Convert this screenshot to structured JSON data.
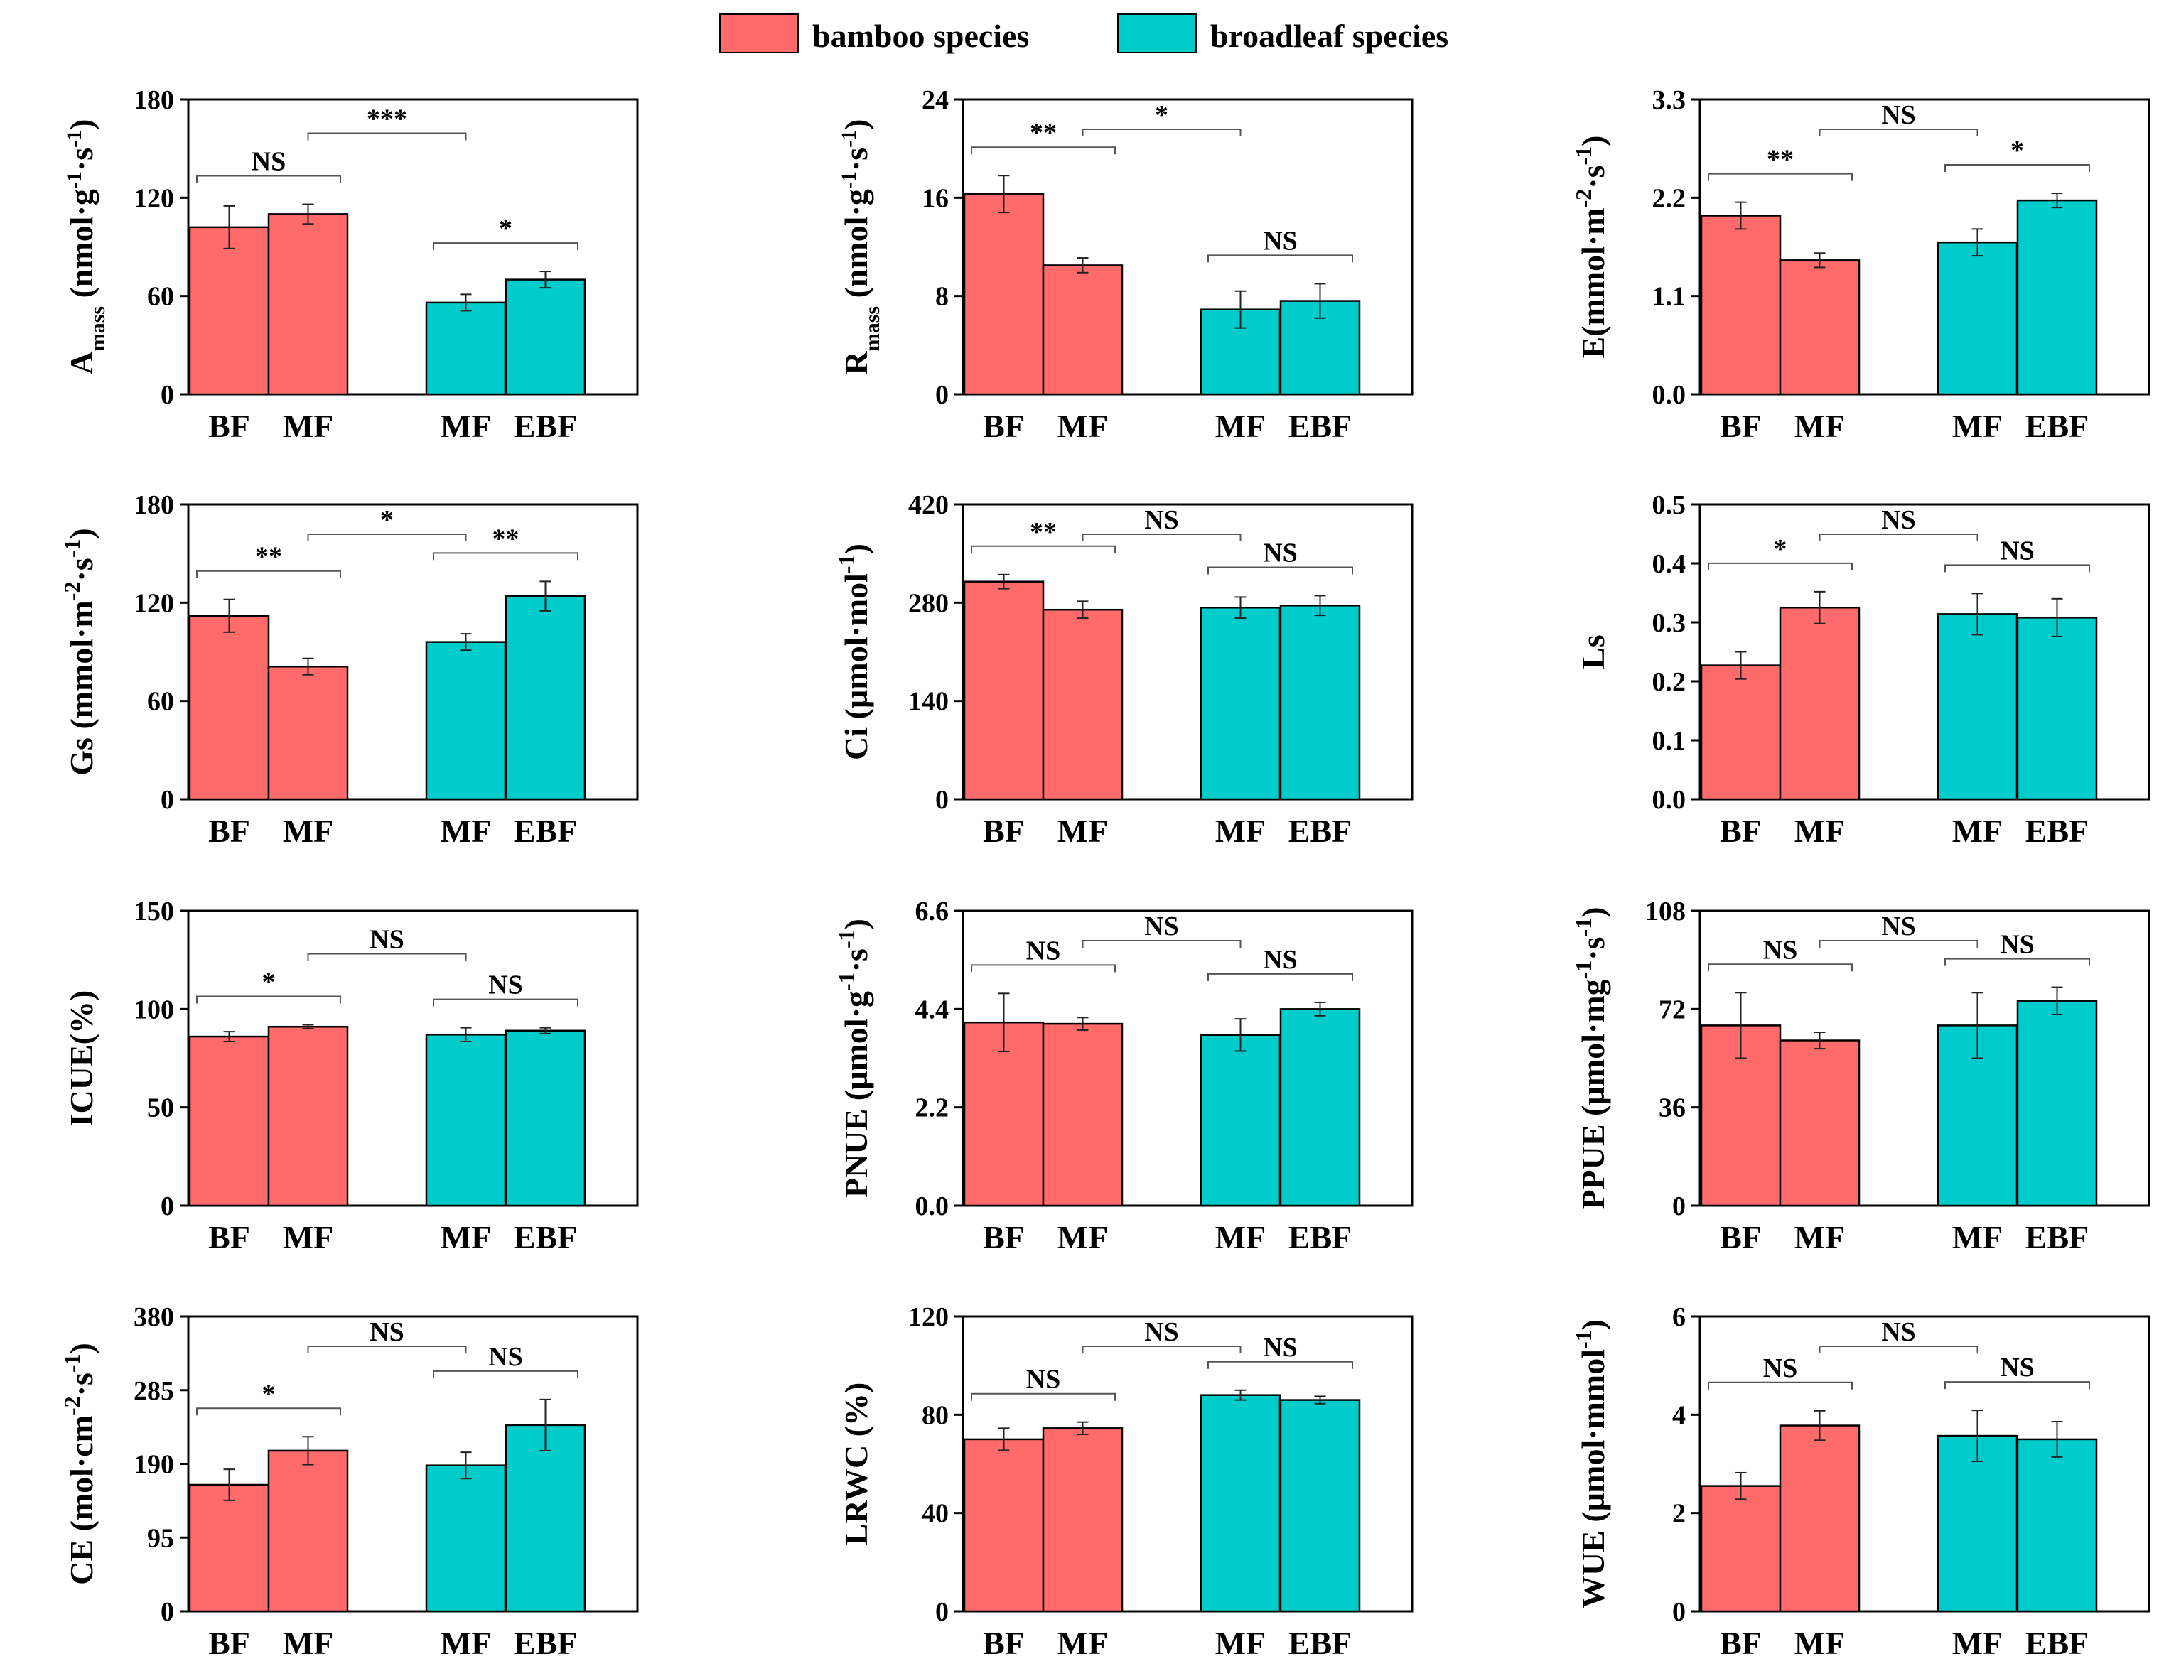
{
  "colors": {
    "bamboo": "#FF6B6B",
    "broadleaf": "#00CCCC",
    "axis": "#000000",
    "bracket": "#555555"
  },
  "legend": [
    {
      "label": "bamboo species",
      "color_key": "bamboo"
    },
    {
      "label": "broadleaf species",
      "color_key": "broadleaf"
    }
  ],
  "chart_data": [
    {
      "type": "bar",
      "id": "amass",
      "ylabel": "Amass",
      "ylabel_main": "A",
      "ylabel_sub": "mass",
      "ylabel_unit": " (nmol·g-1·s-1)",
      "ylim": [
        0,
        180
      ],
      "yticks": [
        "0",
        "60",
        "120",
        "180"
      ],
      "categories": [
        "BF",
        "MF",
        "MF",
        "EBF"
      ],
      "groups": [
        "bamboo",
        "bamboo",
        "broadleaf",
        "broadleaf"
      ],
      "values": [
        102,
        110,
        56,
        70
      ],
      "errors": [
        13,
        6,
        5,
        5
      ],
      "comparisons": [
        {
          "pair": [
            0,
            1
          ],
          "label": "NS",
          "level": 1
        },
        {
          "pair": [
            2,
            3
          ],
          "label": "*",
          "level": 1
        },
        {
          "pair": [
            1,
            2
          ],
          "label": "***",
          "level": 2
        }
      ]
    },
    {
      "type": "bar",
      "id": "rmass",
      "ylabel": "Rmass",
      "ylabel_main": "R",
      "ylabel_sub": "mass",
      "ylabel_unit": " (nmol·g-1·s-1)",
      "ylim": [
        0,
        24
      ],
      "yticks": [
        "0",
        "8",
        "16",
        "24"
      ],
      "categories": [
        "BF",
        "MF",
        "MF",
        "EBF"
      ],
      "groups": [
        "bamboo",
        "bamboo",
        "broadleaf",
        "broadleaf"
      ],
      "values": [
        16.3,
        10.5,
        6.9,
        7.6
      ],
      "errors": [
        1.5,
        0.6,
        1.5,
        1.4
      ],
      "comparisons": [
        {
          "pair": [
            0,
            1
          ],
          "label": "**",
          "level": 1
        },
        {
          "pair": [
            2,
            3
          ],
          "label": "NS",
          "level": 1
        },
        {
          "pair": [
            1,
            2
          ],
          "label": "*",
          "level": 2
        }
      ]
    },
    {
      "type": "bar",
      "id": "e",
      "ylabel": "E(mmol·m-2·s-1)",
      "ylabel_main": "E(mmol·m-2·s-1)",
      "ylabel_sub": "",
      "ylabel_unit": "",
      "ylim": [
        0,
        3.3
      ],
      "yticks": [
        "0.0",
        "1.1",
        "2.2",
        "3.3"
      ],
      "categories": [
        "BF",
        "MF",
        "MF",
        "EBF"
      ],
      "groups": [
        "bamboo",
        "bamboo",
        "broadleaf",
        "broadleaf"
      ],
      "values": [
        2.0,
        1.5,
        1.7,
        2.17
      ],
      "errors": [
        0.15,
        0.08,
        0.15,
        0.08
      ],
      "comparisons": [
        {
          "pair": [
            0,
            1
          ],
          "label": "**",
          "level": 1
        },
        {
          "pair": [
            2,
            3
          ],
          "label": "*",
          "level": 1
        },
        {
          "pair": [
            1,
            2
          ],
          "label": "NS",
          "level": 2
        }
      ]
    },
    {
      "type": "bar",
      "id": "gs",
      "ylabel": "Gs (mmol·m-2·s-1)",
      "ylabel_main": "Gs (mmol·m-2·s-1)",
      "ylabel_sub": "",
      "ylabel_unit": "",
      "ylim": [
        0,
        180
      ],
      "yticks": [
        "0",
        "60",
        "120",
        "180"
      ],
      "categories": [
        "BF",
        "MF",
        "MF",
        "EBF"
      ],
      "groups": [
        "bamboo",
        "bamboo",
        "broadleaf",
        "broadleaf"
      ],
      "values": [
        112,
        81,
        96,
        124
      ],
      "errors": [
        10,
        5,
        5,
        9
      ],
      "comparisons": [
        {
          "pair": [
            0,
            1
          ],
          "label": "**",
          "level": 1
        },
        {
          "pair": [
            2,
            3
          ],
          "label": "**",
          "level": 1
        },
        {
          "pair": [
            1,
            2
          ],
          "label": "*",
          "level": 2
        }
      ]
    },
    {
      "type": "bar",
      "id": "ci",
      "ylabel": "Ci (µmol·mol-1)",
      "ylabel_main": "Ci (µmol·mol-1)",
      "ylabel_sub": "",
      "ylabel_unit": "",
      "ylim": [
        0,
        420
      ],
      "yticks": [
        "0",
        "140",
        "280",
        "420"
      ],
      "categories": [
        "BF",
        "MF",
        "MF",
        "EBF"
      ],
      "groups": [
        "bamboo",
        "bamboo",
        "broadleaf",
        "broadleaf"
      ],
      "values": [
        310,
        270,
        273,
        276
      ],
      "errors": [
        10,
        12,
        15,
        14
      ],
      "comparisons": [
        {
          "pair": [
            0,
            1
          ],
          "label": "**",
          "level": 1
        },
        {
          "pair": [
            2,
            3
          ],
          "label": "NS",
          "level": 1
        },
        {
          "pair": [
            1,
            2
          ],
          "label": "NS",
          "level": 2
        }
      ]
    },
    {
      "type": "bar",
      "id": "ls",
      "ylabel": "Ls",
      "ylabel_main": "Ls",
      "ylabel_sub": "",
      "ylabel_unit": "",
      "ylim": [
        0,
        0.5
      ],
      "yticks": [
        "0.0",
        "0.1",
        "0.2",
        "0.3",
        "0.4",
        "0.5"
      ],
      "categories": [
        "BF",
        "MF",
        "MF",
        "EBF"
      ],
      "groups": [
        "bamboo",
        "bamboo",
        "broadleaf",
        "broadleaf"
      ],
      "values": [
        0.227,
        0.325,
        0.314,
        0.308
      ],
      "errors": [
        0.023,
        0.027,
        0.035,
        0.032
      ],
      "comparisons": [
        {
          "pair": [
            0,
            1
          ],
          "label": "*",
          "level": 1
        },
        {
          "pair": [
            2,
            3
          ],
          "label": "NS",
          "level": 1
        },
        {
          "pair": [
            1,
            2
          ],
          "label": "NS",
          "level": 2
        }
      ]
    },
    {
      "type": "bar",
      "id": "icue",
      "ylabel": "ICUE(%)",
      "ylabel_main": "ICUE(%)",
      "ylabel_sub": "",
      "ylabel_unit": "",
      "ylim": [
        0,
        150
      ],
      "yticks": [
        "0",
        "50",
        "100",
        "150"
      ],
      "categories": [
        "BF",
        "MF",
        "MF",
        "EBF"
      ],
      "groups": [
        "bamboo",
        "bamboo",
        "broadleaf",
        "broadleaf"
      ],
      "values": [
        86,
        91,
        87,
        89
      ],
      "errors": [
        2.5,
        1,
        3.5,
        1.5
      ],
      "comparisons": [
        {
          "pair": [
            0,
            1
          ],
          "label": "*",
          "level": 1
        },
        {
          "pair": [
            2,
            3
          ],
          "label": "NS",
          "level": 1
        },
        {
          "pair": [
            1,
            2
          ],
          "label": "NS",
          "level": 2
        }
      ]
    },
    {
      "type": "bar",
      "id": "pnue",
      "ylabel": "PNUE (µmol·g-1·s-1)",
      "ylabel_main": "PNUE (µmol·g-1·s-1)",
      "ylabel_sub": "",
      "ylabel_unit": "",
      "ylim": [
        0,
        6.6
      ],
      "yticks": [
        "0.0",
        "2.2",
        "4.4",
        "6.6"
      ],
      "categories": [
        "BF",
        "MF",
        "MF",
        "EBF"
      ],
      "groups": [
        "bamboo",
        "bamboo",
        "broadleaf",
        "broadleaf"
      ],
      "values": [
        4.1,
        4.07,
        3.82,
        4.4
      ],
      "errors": [
        0.65,
        0.14,
        0.36,
        0.15
      ],
      "comparisons": [
        {
          "pair": [
            0,
            1
          ],
          "label": "NS",
          "level": 1
        },
        {
          "pair": [
            2,
            3
          ],
          "label": "NS",
          "level": 1
        },
        {
          "pair": [
            1,
            2
          ],
          "label": "NS",
          "level": 2
        }
      ]
    },
    {
      "type": "bar",
      "id": "ppue",
      "ylabel": "PPUE (µmol·mg-1·s-1)",
      "ylabel_main": "PPUE (µmol·mg-1·s-1)",
      "ylabel_sub": "",
      "ylabel_unit": "",
      "ylim": [
        0,
        108
      ],
      "yticks": [
        "0",
        "36",
        "72",
        "108"
      ],
      "categories": [
        "BF",
        "MF",
        "MF",
        "EBF"
      ],
      "groups": [
        "bamboo",
        "bamboo",
        "broadleaf",
        "broadleaf"
      ],
      "values": [
        66,
        60.5,
        66,
        75
      ],
      "errors": [
        12,
        3,
        12,
        5
      ],
      "comparisons": [
        {
          "pair": [
            0,
            1
          ],
          "label": "NS",
          "level": 1
        },
        {
          "pair": [
            2,
            3
          ],
          "label": "NS",
          "level": 1
        },
        {
          "pair": [
            1,
            2
          ],
          "label": "NS",
          "level": 2
        }
      ]
    },
    {
      "type": "bar",
      "id": "ce",
      "ylabel": "CE (mol·cm-2·s-1)",
      "ylabel_main": "CE (mol·cm-2·s-1)",
      "ylabel_sub": "",
      "ylabel_unit": "",
      "ylim": [
        0,
        380
      ],
      "yticks": [
        "0",
        "95",
        "190",
        "285",
        "380"
      ],
      "categories": [
        "BF",
        "MF",
        "MF",
        "EBF"
      ],
      "groups": [
        "bamboo",
        "bamboo",
        "broadleaf",
        "broadleaf"
      ],
      "values": [
        163,
        207,
        188,
        240
      ],
      "errors": [
        20,
        18,
        17,
        33
      ],
      "comparisons": [
        {
          "pair": [
            0,
            1
          ],
          "label": "*",
          "level": 1
        },
        {
          "pair": [
            2,
            3
          ],
          "label": "NS",
          "level": 1
        },
        {
          "pair": [
            1,
            2
          ],
          "label": "NS",
          "level": 2
        }
      ]
    },
    {
      "type": "bar",
      "id": "lrwc",
      "ylabel": "LRWC (%)",
      "ylabel_main": "LRWC (%)",
      "ylabel_sub": "",
      "ylabel_unit": "",
      "ylim": [
        0,
        120
      ],
      "yticks": [
        "0",
        "40",
        "80",
        "120"
      ],
      "categories": [
        "BF",
        "MF",
        "MF",
        "EBF"
      ],
      "groups": [
        "bamboo",
        "bamboo",
        "broadleaf",
        "broadleaf"
      ],
      "values": [
        70,
        74.5,
        88,
        86
      ],
      "errors": [
        4.5,
        2.5,
        2,
        1.5
      ],
      "comparisons": [
        {
          "pair": [
            0,
            1
          ],
          "label": "NS",
          "level": 1
        },
        {
          "pair": [
            2,
            3
          ],
          "label": "NS",
          "level": 1
        },
        {
          "pair": [
            1,
            2
          ],
          "label": "NS",
          "level": 2
        }
      ]
    },
    {
      "type": "bar",
      "id": "wue",
      "ylabel": "WUE (µmol·mmol-1)",
      "ylabel_main": "WUE (µmol·mmol-1)",
      "ylabel_sub": "",
      "ylabel_unit": "",
      "ylim": [
        0,
        6
      ],
      "yticks": [
        "0",
        "2",
        "4",
        "6"
      ],
      "categories": [
        "BF",
        "MF",
        "MF",
        "EBF"
      ],
      "groups": [
        "bamboo",
        "bamboo",
        "broadleaf",
        "broadleaf"
      ],
      "values": [
        2.55,
        3.78,
        3.57,
        3.5
      ],
      "errors": [
        0.27,
        0.3,
        0.52,
        0.36
      ],
      "comparisons": [
        {
          "pair": [
            0,
            1
          ],
          "label": "NS",
          "level": 1
        },
        {
          "pair": [
            2,
            3
          ],
          "label": "NS",
          "level": 1
        },
        {
          "pair": [
            1,
            2
          ],
          "label": "NS",
          "level": 2
        }
      ]
    }
  ]
}
